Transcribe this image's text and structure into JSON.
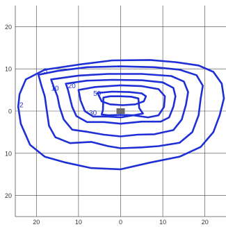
{
  "chart_data": {
    "type": "contour",
    "title": "",
    "xlabel": "",
    "ylabel": "",
    "xlim": [
      -25,
      25
    ],
    "ylim": [
      -25,
      25
    ],
    "x_axis_reversed": true,
    "grid": true,
    "x_ticks": [
      -20,
      -10,
      0,
      10,
      20
    ],
    "x_tick_labels": [
      "20",
      "10",
      "0",
      "10",
      "20"
    ],
    "y_ticks": [
      20,
      10,
      0,
      -10,
      -20
    ],
    "y_tick_labels": [
      "20",
      "10",
      "0",
      "10",
      "20"
    ],
    "line_color": "#1f2fd6",
    "source_marker_color": "#6b6b6b",
    "source": {
      "x": 0,
      "y": 0
    },
    "contours": [
      {
        "label": "2",
        "label_at": [
          24,
          1.5
        ],
        "points": [
          [
            24.3,
            1
          ],
          [
            24,
            4
          ],
          [
            22.5,
            7.5
          ],
          [
            18,
            9.8
          ],
          [
            10,
            11
          ],
          [
            2,
            12
          ],
          [
            -7,
            12.1
          ],
          [
            -13,
            11.6
          ],
          [
            -18.5,
            10.8
          ],
          [
            -22,
            9.3
          ],
          [
            -24,
            6.5
          ],
          [
            -24.5,
            3
          ],
          [
            -23.5,
            -1
          ],
          [
            -22,
            -5
          ],
          [
            -19,
            -8.5
          ],
          [
            -14,
            -10.8
          ],
          [
            -7,
            -12.2
          ],
          [
            0,
            -13.8
          ],
          [
            7,
            -13.5
          ],
          [
            13,
            -12.2
          ],
          [
            18,
            -10.8
          ],
          [
            21.5,
            -8
          ],
          [
            23.7,
            -3
          ],
          [
            24.3,
            1
          ]
        ]
      },
      {
        "label": "5",
        "label_at": [
          18.3,
          9.5
        ],
        "points": [
          [
            19.5,
            8.6
          ],
          [
            15,
            9.5
          ],
          [
            8,
            10.4
          ],
          [
            0,
            10.6
          ],
          [
            -8,
            10.4
          ],
          [
            -14,
            9.8
          ],
          [
            -18,
            8.5
          ],
          [
            -19.5,
            6
          ],
          [
            -19,
            3
          ],
          [
            -18.5,
            -1
          ],
          [
            -17,
            -5
          ],
          [
            -14,
            -7.5
          ],
          [
            -9,
            -8.3
          ],
          [
            -5,
            -8.6
          ],
          [
            0,
            -8.8
          ],
          [
            3,
            -8.3
          ],
          [
            7,
            -7.3
          ],
          [
            12,
            -7.6
          ],
          [
            15.5,
            -6.2
          ],
          [
            17,
            -3.5
          ],
          [
            17.5,
            0
          ],
          [
            18,
            3.5
          ],
          [
            18.8,
            6
          ],
          [
            19.5,
            8.6
          ]
        ]
      },
      {
        "label": "10",
        "label_at": [
          16.5,
          5.4
        ],
        "points": [
          [
            16.5,
            7.5
          ],
          [
            10,
            8.4
          ],
          [
            3,
            8.8
          ],
          [
            -5,
            8.8
          ],
          [
            -12,
            8.3
          ],
          [
            -15,
            7
          ],
          [
            -16,
            4.5
          ],
          [
            -15.5,
            1.5
          ],
          [
            -14.5,
            -2
          ],
          [
            -12.5,
            -4.5
          ],
          [
            -8,
            -5.5
          ],
          [
            -4,
            -5.6
          ],
          [
            0,
            -6
          ],
          [
            4,
            -5.6
          ],
          [
            8,
            -4.9
          ],
          [
            11.5,
            -4.4
          ],
          [
            13.5,
            -2
          ],
          [
            14.5,
            1
          ],
          [
            15,
            3.5
          ],
          [
            15.8,
            5.5
          ],
          [
            16.5,
            7.5
          ]
        ]
      },
      {
        "label": "20",
        "label_at": [
          12.5,
          6
        ],
        "points": [
          [
            13,
            6.5
          ],
          [
            8,
            7.2
          ],
          [
            2,
            7.4
          ],
          [
            -5,
            7.3
          ],
          [
            -10,
            6.8
          ],
          [
            -12.5,
            5.5
          ],
          [
            -13,
            3.5
          ],
          [
            -12.5,
            1
          ],
          [
            -11.5,
            -1.5
          ],
          [
            -9.5,
            -2.5
          ],
          [
            -5,
            -2.5
          ],
          [
            0,
            -3
          ],
          [
            4,
            -2.6
          ],
          [
            8,
            -2.6
          ],
          [
            10.5,
            -1.2
          ],
          [
            11.5,
            1
          ],
          [
            12,
            3
          ],
          [
            12.5,
            5
          ],
          [
            13,
            6.5
          ]
        ]
      },
      {
        "label": "30",
        "label_at": [
          7.5,
          -0.4
        ],
        "points": [
          [
            10,
            5
          ],
          [
            6,
            5.7
          ],
          [
            0,
            6.1
          ],
          [
            -5,
            5.9
          ],
          [
            -9,
            5.2
          ],
          [
            -10.5,
            3.5
          ],
          [
            -10.3,
            1
          ],
          [
            -9,
            -1
          ],
          [
            -6.5,
            -1.5
          ],
          [
            -3,
            -1
          ],
          [
            0,
            -1.5
          ],
          [
            3,
            -1.3
          ],
          [
            6.5,
            -1.3
          ],
          [
            8.5,
            0
          ],
          [
            9.5,
            2.5
          ],
          [
            10,
            5
          ]
        ]
      },
      {
        "label": "50",
        "label_at": [
          6.5,
          4.2
        ],
        "points": [
          [
            5.5,
            4.3
          ],
          [
            2,
            4.6
          ],
          [
            -2,
            4.5
          ],
          [
            -5,
            4.2
          ],
          [
            -6,
            3.5
          ],
          [
            -5.5,
            2.3
          ],
          [
            -3.5,
            1.6
          ],
          [
            -0.5,
            1.4
          ],
          [
            2.5,
            1.6
          ],
          [
            4.5,
            2.3
          ],
          [
            5.5,
            4.3
          ]
        ]
      },
      {
        "label": "",
        "label_at": null,
        "points": [
          [
            4.2,
            0.2
          ],
          [
            4.1,
            3.2
          ],
          [
            2.5,
            3.5
          ],
          [
            0,
            3.5
          ],
          [
            -2.5,
            3.4
          ],
          [
            -4.2,
            3
          ],
          [
            -4.4,
            0.7
          ],
          [
            -5.3,
            -0.6
          ],
          [
            -3,
            -1
          ],
          [
            0,
            -0.9
          ],
          [
            3,
            -1
          ],
          [
            4.5,
            -0.8
          ],
          [
            4.2,
            0.2
          ]
        ]
      }
    ]
  }
}
